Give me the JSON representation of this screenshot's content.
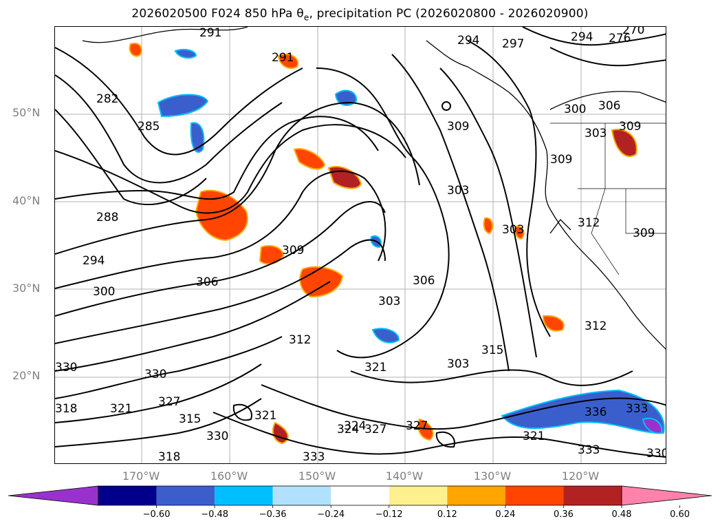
{
  "title": "2026020500 F024 850 hPa θe, precipitation PC (2026020800 - 2026020900)",
  "map": {
    "type": "map",
    "lat_labels": [
      "50°N",
      "40°N",
      "30°N",
      "20°N"
    ],
    "lon_labels": [
      "170°W",
      "160°W",
      "150°W",
      "140°W",
      "130°W",
      "120°W"
    ],
    "contour_labels": [
      "291",
      "294",
      "297",
      "294",
      "270",
      "276",
      "291",
      "282",
      "285",
      "288",
      "294",
      "300",
      "306",
      "309",
      "303",
      "306",
      "303",
      "309",
      "303",
      "309",
      "312",
      "309",
      "312",
      "303",
      "315",
      "321",
      "312",
      "321",
      "324",
      "327",
      "330",
      "330",
      "318",
      "321",
      "327",
      "315",
      "318",
      "330",
      "333",
      "324",
      "327",
      "321",
      "333",
      "336",
      "330",
      "333",
      "309",
      "300",
      "303",
      "306"
    ],
    "land_color": "#ffffff",
    "contour_color": "#000000",
    "grid_color": "#b0b0b0"
  },
  "colorbar": {
    "colors": [
      "#9932cc",
      "#00008b",
      "#3a5fcd",
      "#00bfff",
      "#b0e2ff",
      "#ffffff",
      "#fff08f",
      "#ffa500",
      "#ff4500",
      "#b22222",
      "#ff82ab"
    ],
    "ticks": [
      "−0.60",
      "−0.48",
      "−0.36",
      "−0.24",
      "−0.12",
      "0.12",
      "0.24",
      "0.36",
      "0.48",
      "0.60"
    ]
  }
}
